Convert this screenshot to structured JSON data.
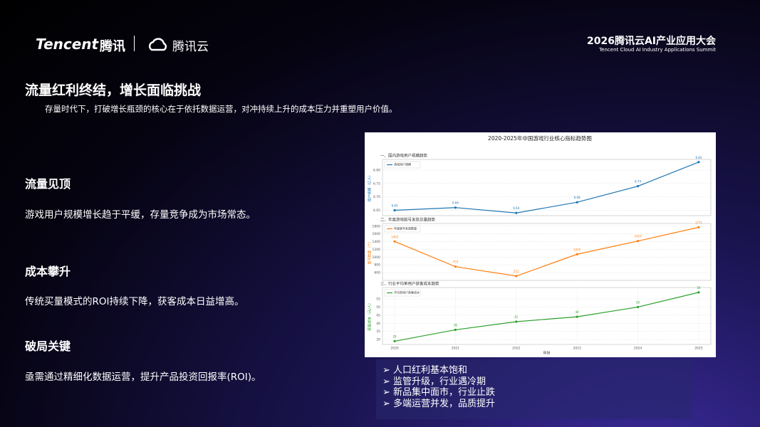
{
  "header": {
    "logo_brand": "Tencent",
    "logo_brand_cn": "腾讯",
    "logo_cloud": "腾讯云",
    "event_title": "2026腾讯云AI产业应用大会",
    "event_subtitle": "Tencent Cloud AI Industry Applications Summit"
  },
  "title": "流量红利终结，增长面临挑战",
  "subtitle": "存量时代下，打破增长瓶颈的核心在于依托数据运营，对冲持续上升的成本压力并重塑用户价值。",
  "sections": [
    {
      "heading": "流量见顶",
      "text": "游戏用户规模增长趋于平缓，存量竞争成为市场常态。"
    },
    {
      "heading": "成本攀升",
      "text": "传统买量模式的ROI持续下降，获客成本日益增高。"
    },
    {
      "heading": "破局关键",
      "text": "亟需通过精细化数据运营，提升产品投资回报率(ROI)。"
    }
  ],
  "bullets": [
    "人口红利基本饱和",
    "监管升级，行业遇冷期",
    "新品集中面市，行业止跌",
    "多端运营并发，品质提升"
  ],
  "figure_title": "2020-2025年中国游戏行业核心指标趋势图",
  "chart_data": [
    {
      "type": "line",
      "title": "一、国内游戏用户规模趋势",
      "ylabel": "用户规模（亿人）",
      "x": [
        2020,
        2021,
        2022,
        2023,
        2024,
        2025
      ],
      "xlim": [
        2019.8,
        2025.2
      ],
      "series": [
        {
          "name": "游戏用户规模",
          "color": "#1f77b4",
          "values": [
            6.65,
            6.66,
            6.64,
            6.68,
            6.74,
            6.83
          ]
        }
      ],
      "ylim": [
        6.63,
        6.84
      ],
      "yticks": [
        6.65,
        {
          "value": 6.7,
          "label": "6.70"
        },
        6.75,
        {
          "value": 6.8,
          "label": "6.80"
        }
      ],
      "grid": true
    },
    {
      "type": "line",
      "title": "二、年度游戏版号发放总量趋势",
      "ylabel": "版号数量（个）",
      "x": [
        2020,
        2021,
        2022,
        2023,
        2024,
        2025
      ],
      "xlim": [
        2019.8,
        2025.2
      ],
      "series": [
        {
          "name": "年度版号发放数量",
          "color": "#ff7f0e",
          "values": [
            1405,
            755,
            512,
            1075,
            1416,
            1771
          ]
        }
      ],
      "ylim": [
        400,
        1870
      ],
      "yticks": [
        600,
        800,
        1000,
        1200,
        1400,
        1600,
        1800
      ],
      "grid": true
    },
    {
      "type": "line",
      "title": "三、行业平均单用户获客成本趋势",
      "ylabel": "获客成本（元/人）",
      "xlabel": "年份",
      "x": [
        2020,
        2021,
        2022,
        2023,
        2024,
        2025
      ],
      "xlim": [
        2019.8,
        2025.2
      ],
      "xticks": [
        2020,
        2021,
        2022,
        2023,
        2024,
        2025
      ],
      "series": [
        {
          "name": "平均单用户获客成本",
          "color": "#2ca02c",
          "values": [
            29,
            36,
            41,
            44,
            50,
            59
          ]
        }
      ],
      "ylim": [
        27,
        62
      ],
      "yticks": [
        30,
        35,
        40,
        45,
        50,
        55
      ],
      "grid": true
    }
  ]
}
